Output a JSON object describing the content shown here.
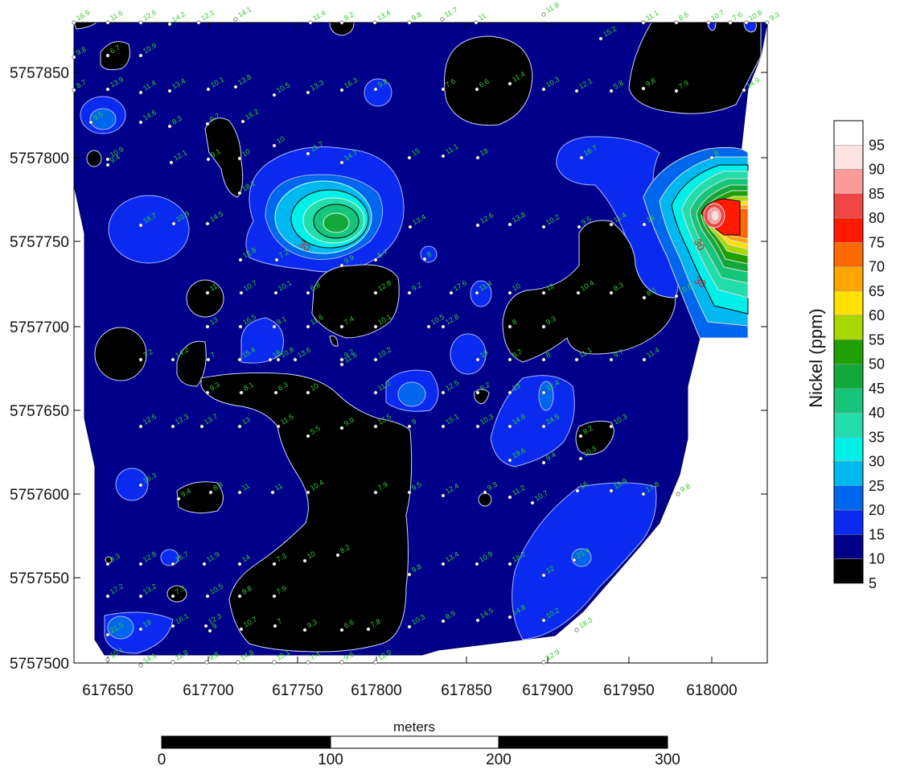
{
  "map": {
    "x_ticks": [
      "617650",
      "617700",
      "617750",
      "617800",
      "617850",
      "617900",
      "617950",
      "618000"
    ],
    "y_ticks": [
      "5757850",
      "5757800",
      "5757750",
      "5757700",
      "5757650",
      "5757600",
      "5757550",
      "5757500"
    ],
    "contour_labels": [
      "30",
      "30",
      "30"
    ]
  },
  "legend": {
    "title": "Nickel (ppm)",
    "levels": [
      {
        "value": "95",
        "color": "#ffffff"
      },
      {
        "value": "90",
        "color": "#fde2e2"
      },
      {
        "value": "85",
        "color": "#fd9a9a"
      },
      {
        "value": "80",
        "color": "#f24545"
      },
      {
        "value": "75",
        "color": "#ff1a00"
      },
      {
        "value": "70",
        "color": "#ff6a00"
      },
      {
        "value": "65",
        "color": "#ffa500"
      },
      {
        "value": "60",
        "color": "#ffe000"
      },
      {
        "value": "55",
        "color": "#a8d800"
      },
      {
        "value": "50",
        "color": "#1fa000"
      },
      {
        "value": "45",
        "color": "#12a83a"
      },
      {
        "value": "40",
        "color": "#14c57a"
      },
      {
        "value": "35",
        "color": "#22ddaa"
      },
      {
        "value": "30",
        "color": "#00f0e8"
      },
      {
        "value": "25",
        "color": "#00b8f0"
      },
      {
        "value": "20",
        "color": "#0066ee"
      },
      {
        "value": "15",
        "color": "#0a2af0"
      },
      {
        "value": "10",
        "color": "#00008a"
      },
      {
        "value": "5",
        "color": "#000000"
      }
    ]
  },
  "scalebar": {
    "title": "meters",
    "labels": [
      "0",
      "100",
      "200",
      "300"
    ]
  },
  "samples": [
    "16.9",
    "11.6",
    "12.6",
    "14.2",
    "12.1",
    "14.1",
    "11.4",
    "8.2",
    "13.4",
    "9.8",
    "11.7",
    "11",
    "11.8",
    "11.1",
    "8.6",
    "10.7",
    "7.6",
    "10.8",
    "9.3",
    "9.8",
    "6.7",
    "10.9",
    "15.2",
    "8.7",
    "13.9",
    "11.4",
    "13.4",
    "10.1",
    "13.8",
    "10.5",
    "13.3",
    "16.3",
    "9.8",
    "7.6",
    "6.6",
    "11.4",
    "10.3",
    "12.1",
    "5.8",
    "9.8",
    "7.9",
    "14.9",
    "9.5",
    "14.6",
    "8.3",
    "9.7",
    "16.2",
    "10",
    "11.7",
    "14.7",
    "15",
    "11.1",
    "18",
    "16.7",
    "8",
    "10.9",
    "9.4",
    "12.1",
    "9.1",
    "10",
    "18.2",
    "18.7",
    "10.9",
    "14.5",
    "13.4",
    "12.6",
    "13.8",
    "10.2",
    "9.5",
    "11.4",
    "16",
    "12.8",
    "7.2",
    "9.9",
    "5.7",
    "8",
    "11",
    "10.7",
    "10.1",
    "6.8",
    "12.8",
    "9.2",
    "17.6",
    "11.4",
    "10",
    "12",
    "10.4",
    "8.3",
    "8.1",
    "10.6",
    "13",
    "16.5",
    "9.1",
    "11.6",
    "7.4",
    "10.1",
    "10.5",
    "12.8",
    "8",
    "9.3",
    "7.2",
    "14.2",
    "7",
    "15.4",
    "18",
    "10.8",
    "13.6",
    "9.2",
    "11.6",
    "10.2",
    "19",
    "8.7",
    "8",
    "11.1",
    "9.7",
    "11.4",
    "9.3",
    "8.1",
    "6.3",
    "10",
    "11.2",
    "12.5",
    "8.2",
    "13",
    "12.4",
    "12.6",
    "12.3",
    "13.7",
    "13",
    "11.5",
    "5.5",
    "9.9",
    "13.5",
    "9",
    "15.1",
    "10.3",
    "14.6",
    "24.5",
    "8.2",
    "10.3",
    "19.6",
    "9.4",
    "10.3",
    "16.3",
    "9.4",
    "8.8",
    "11",
    "11",
    "10.4",
    "7.9",
    "9.5",
    "12.4",
    "9.3",
    "11.2",
    "10.7",
    "16",
    "15.9",
    "17.8",
    "9.8",
    "9.3",
    "12.8",
    "16.7",
    "11.9",
    "14",
    "7.3",
    "10",
    "8.2",
    "9.8",
    "13.4",
    "10.9",
    "18.2",
    "12",
    "21.4",
    "17.2",
    "13.2",
    "7.3",
    "10.5",
    "8.8",
    "7.9",
    "21.5",
    "19",
    "16.1",
    "12.3",
    "9",
    "10.7",
    "7",
    "9.3",
    "6.6",
    "7.8",
    "10.3",
    "8.9",
    "14.5",
    "14.8",
    "10.2",
    "18.3",
    "10.1",
    "14.1",
    "11.8",
    "9.8",
    "14.8",
    "15.1",
    "7.4",
    "9.6",
    "12.9",
    "12.9",
    "9.5"
  ]
}
